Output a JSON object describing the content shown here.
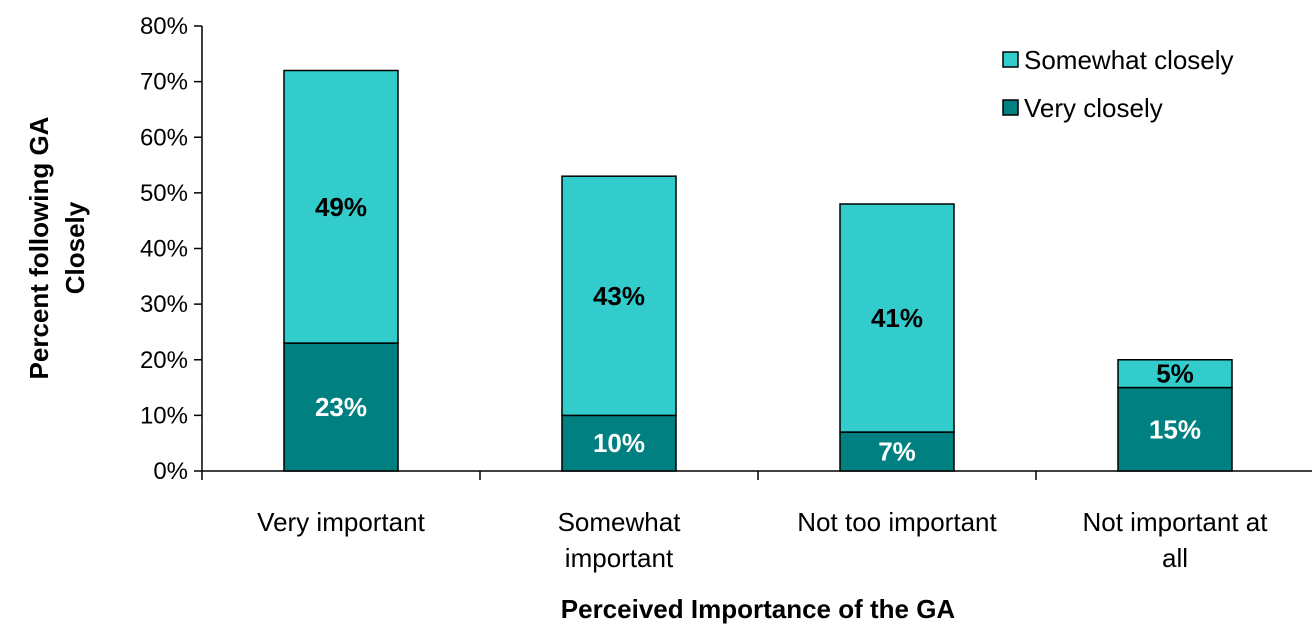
{
  "chart_data": {
    "type": "bar",
    "stacked": true,
    "categories": [
      [
        "Very important"
      ],
      [
        "Somewhat",
        "important"
      ],
      [
        "Not too important"
      ],
      [
        "Not important at",
        "all"
      ]
    ],
    "series": [
      {
        "name": "Very closely",
        "values": [
          23,
          10,
          7,
          15
        ],
        "color": "#008080",
        "label_color": "#ffffff"
      },
      {
        "name": "Somewhat closely",
        "values": [
          49,
          43,
          41,
          5
        ],
        "color": "#33cccc",
        "label_color": "#000000"
      }
    ],
    "data_labels": [
      [
        "23%",
        "10%",
        "7%",
        "15%"
      ],
      [
        "49%",
        "43%",
        "41%",
        "5%"
      ]
    ],
    "xlabel": "Perceived Importance of the GA",
    "ylabel": [
      "Percent following GA",
      "Closely"
    ],
    "ylim": [
      0,
      80
    ],
    "yticks": [
      "0%",
      "10%",
      "20%",
      "30%",
      "40%",
      "50%",
      "60%",
      "70%",
      "80%"
    ],
    "grid": false,
    "legend_position": "top-right",
    "legend_order": [
      "Somewhat closely",
      "Very closely"
    ]
  }
}
